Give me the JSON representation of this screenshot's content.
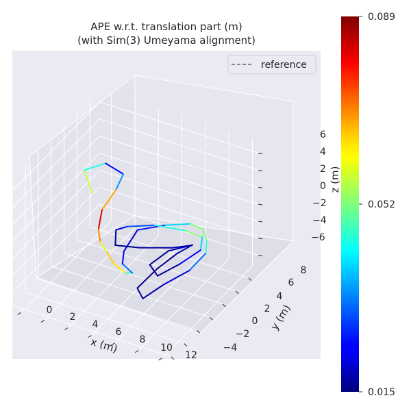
{
  "chart_data": {
    "type": "line",
    "title_line1": "APE w.r.t. translation part (m)",
    "title_line2": "(with Sim(3) Umeyama alignment)",
    "xlabel": "x (m)",
    "ylabel": "y (m)",
    "zlabel": "z (m)",
    "legend": {
      "label": "reference",
      "placement": "top-right"
    },
    "x_ticks": [
      "0",
      "2",
      "4",
      "6",
      "8",
      "10",
      "12"
    ],
    "y_ticks": [
      "−4",
      "−2",
      "0",
      "2",
      "4",
      "6",
      "8"
    ],
    "z_ticks": [
      "6",
      "4",
      "2",
      "0",
      "−2",
      "−4",
      "−6"
    ],
    "grid": true,
    "colorbar": {
      "min": 0.015,
      "max": 0.089,
      "ticks": [
        "0.089",
        "0.052",
        "0.015"
      ],
      "colormap": "jet"
    },
    "trajectory": {
      "name": "APE",
      "points": [
        [
          1.5,
          3.8,
          0.8,
          0.055
        ],
        [
          0.6,
          4.2,
          2.8,
          0.06
        ],
        [
          2.2,
          4.6,
          4.0,
          0.03
        ],
        [
          3.6,
          4.8,
          3.2,
          0.02
        ],
        [
          3.2,
          4.4,
          1.5,
          0.05
        ],
        [
          2.5,
          3.5,
          -0.5,
          0.085
        ],
        [
          2.8,
          2.4,
          -1.8,
          0.08
        ],
        [
          3.4,
          1.6,
          -2.4,
          0.06
        ],
        [
          4.2,
          1.2,
          -3.0,
          0.06
        ],
        [
          5.0,
          0.8,
          -3.6,
          0.07
        ],
        [
          6.2,
          0.4,
          -3.9,
          0.055
        ],
        [
          7.0,
          0.0,
          -3.2,
          0.04
        ],
        [
          6.0,
          0.3,
          -2.8,
          0.025
        ],
        [
          5.4,
          1.6,
          -2.6,
          0.022
        ],
        [
          5.8,
          3.0,
          -1.0,
          0.02
        ],
        [
          7.5,
          4.2,
          -0.6,
          0.03
        ],
        [
          9.2,
          5.0,
          -0.3,
          0.05
        ],
        [
          10.0,
          5.5,
          -1.0,
          0.055
        ],
        [
          10.3,
          5.5,
          -2.2,
          0.05
        ],
        [
          10.6,
          4.8,
          -3.0,
          0.04
        ],
        [
          10.2,
          3.0,
          -3.8,
          0.025
        ],
        [
          9.0,
          1.2,
          -4.6,
          0.018
        ],
        [
          8.0,
          -0.2,
          -5.6,
          0.017
        ],
        [
          7.2,
          0.4,
          -5.2,
          0.016
        ],
        [
          7.8,
          2.4,
          -4.2,
          0.016
        ],
        [
          8.6,
          4.0,
          -3.3,
          0.017
        ],
        [
          9.4,
          4.8,
          -2.6,
          0.02
        ],
        [
          8.4,
          3.6,
          -2.4,
          0.018
        ],
        [
          6.5,
          2.0,
          -2.0,
          0.016
        ],
        [
          5.0,
          1.0,
          -1.6,
          0.016
        ],
        [
          4.4,
          2.2,
          -1.0,
          0.018
        ],
        [
          4.8,
          3.2,
          -1.2,
          0.025
        ],
        [
          6.6,
          4.2,
          -1.0,
          0.035
        ],
        [
          8.8,
          5.0,
          -1.3,
          0.055
        ],
        [
          10.1,
          5.2,
          -1.6,
          0.05
        ],
        [
          10.5,
          4.2,
          -2.2,
          0.03
        ],
        [
          9.6,
          2.6,
          -3.0,
          0.018
        ],
        [
          8.6,
          1.0,
          -3.6,
          0.016
        ],
        [
          7.6,
          1.6,
          -3.2,
          0.016
        ],
        [
          8.2,
          3.4,
          -2.7,
          0.017
        ],
        [
          9.6,
          4.6,
          -2.3,
          0.02
        ]
      ]
    }
  }
}
